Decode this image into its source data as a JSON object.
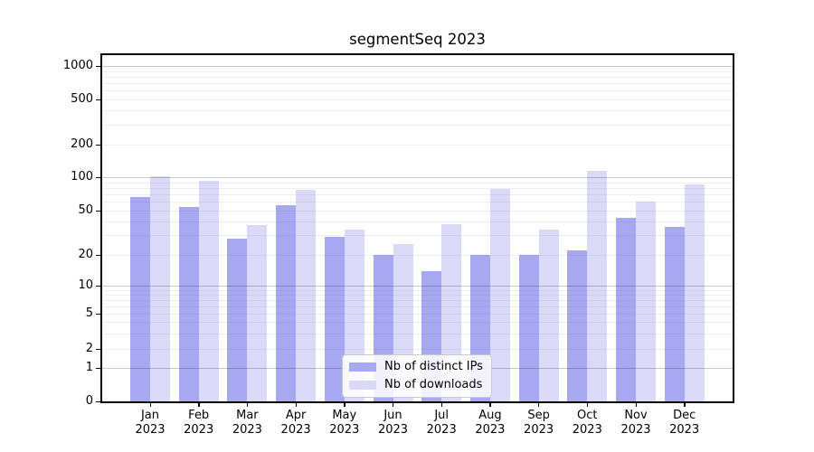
{
  "chart_data": {
    "type": "bar",
    "title": "segmentSeq 2023",
    "categories": [
      "Jan",
      "Feb",
      "Mar",
      "Apr",
      "May",
      "Jun",
      "Jul",
      "Aug",
      "Sep",
      "Oct",
      "Nov",
      "Dec"
    ],
    "year_label": "2023",
    "series": [
      {
        "name": "Nb of distinct IPs",
        "color": "#a7a7f2",
        "values": [
          66,
          54,
          28,
          56,
          29,
          20,
          14,
          20,
          20,
          22,
          43,
          36
        ]
      },
      {
        "name": "Nb of downloads",
        "color": "#dadaf8",
        "values": [
          102,
          93,
          37,
          77,
          34,
          25,
          38,
          78,
          34,
          115,
          60,
          86
        ]
      }
    ],
    "xlabel": "",
    "ylabel": "",
    "y_axis": {
      "scale": "symlog",
      "tick_labels": [
        "0",
        "1",
        "2",
        "5",
        "10",
        "20",
        "50",
        "100",
        "200",
        "500",
        "1000"
      ],
      "ticks": [
        0,
        1,
        2,
        5,
        10,
        20,
        50,
        100,
        200,
        500,
        1000
      ],
      "ylim": [
        0,
        1300
      ]
    },
    "grid": "horizontal log grid, major lines at decades, faint minor lines, drawn over bars",
    "legend": {
      "position": "inside-bottom-center",
      "entries": [
        "Nb of distinct IPs",
        "Nb of downloads"
      ]
    }
  },
  "colors": {
    "distinct_ips_bar": "#a7a7f2",
    "downloads_bar": "#dadaf8",
    "grid_major": "#c9c9c9",
    "grid_minor": "#efefef",
    "axis_spine": "#000000",
    "background": "#ffffff",
    "legend_border": "#cbcbcb"
  }
}
